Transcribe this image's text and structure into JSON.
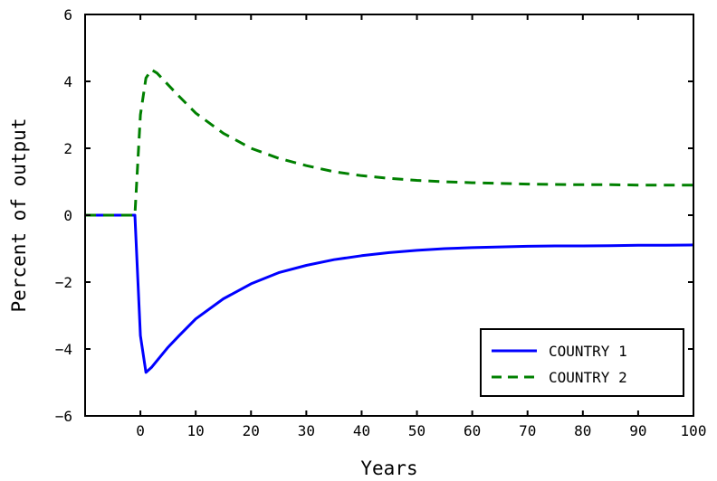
{
  "chart_data": {
    "type": "line",
    "title": "",
    "xlabel": "Years",
    "ylabel": "Percent of output",
    "xlim": [
      -10,
      100
    ],
    "ylim": [
      -6,
      6
    ],
    "xticks": [
      "0",
      "10",
      "20",
      "30",
      "40",
      "50",
      "60",
      "70",
      "80",
      "90",
      "100"
    ],
    "yticks": [
      "6",
      "4",
      "2",
      "0",
      "−2",
      "−4",
      "−6"
    ],
    "legend_position": "lower-right",
    "grid": false,
    "series": [
      {
        "name": "COUNTRY 1",
        "color": "#0000ff",
        "style": "solid",
        "x": [
          -10,
          -1,
          0,
          1,
          2,
          3,
          5,
          7,
          10,
          15,
          20,
          25,
          30,
          35,
          40,
          45,
          50,
          55,
          60,
          65,
          70,
          75,
          80,
          85,
          90,
          95,
          100
        ],
        "y": [
          0,
          0,
          -3.6,
          -4.7,
          -4.55,
          -4.35,
          -3.95,
          -3.6,
          -3.1,
          -2.5,
          -2.05,
          -1.72,
          -1.5,
          -1.33,
          -1.21,
          -1.12,
          -1.05,
          -1.0,
          -0.97,
          -0.95,
          -0.93,
          -0.92,
          -0.92,
          -0.91,
          -0.9,
          -0.9,
          -0.89
        ]
      },
      {
        "name": "COUNTRY 2",
        "color": "#008000",
        "style": "dashed",
        "x": [
          -10,
          -1,
          0,
          1,
          2,
          3,
          5,
          7,
          10,
          15,
          20,
          25,
          30,
          35,
          40,
          45,
          50,
          55,
          60,
          65,
          70,
          75,
          80,
          85,
          90,
          95,
          100
        ],
        "y": [
          0,
          0,
          3.0,
          4.1,
          4.35,
          4.25,
          3.9,
          3.55,
          3.05,
          2.45,
          2.0,
          1.7,
          1.48,
          1.3,
          1.18,
          1.1,
          1.04,
          1.0,
          0.97,
          0.95,
          0.93,
          0.92,
          0.91,
          0.91,
          0.9,
          0.9,
          0.9
        ]
      }
    ]
  }
}
